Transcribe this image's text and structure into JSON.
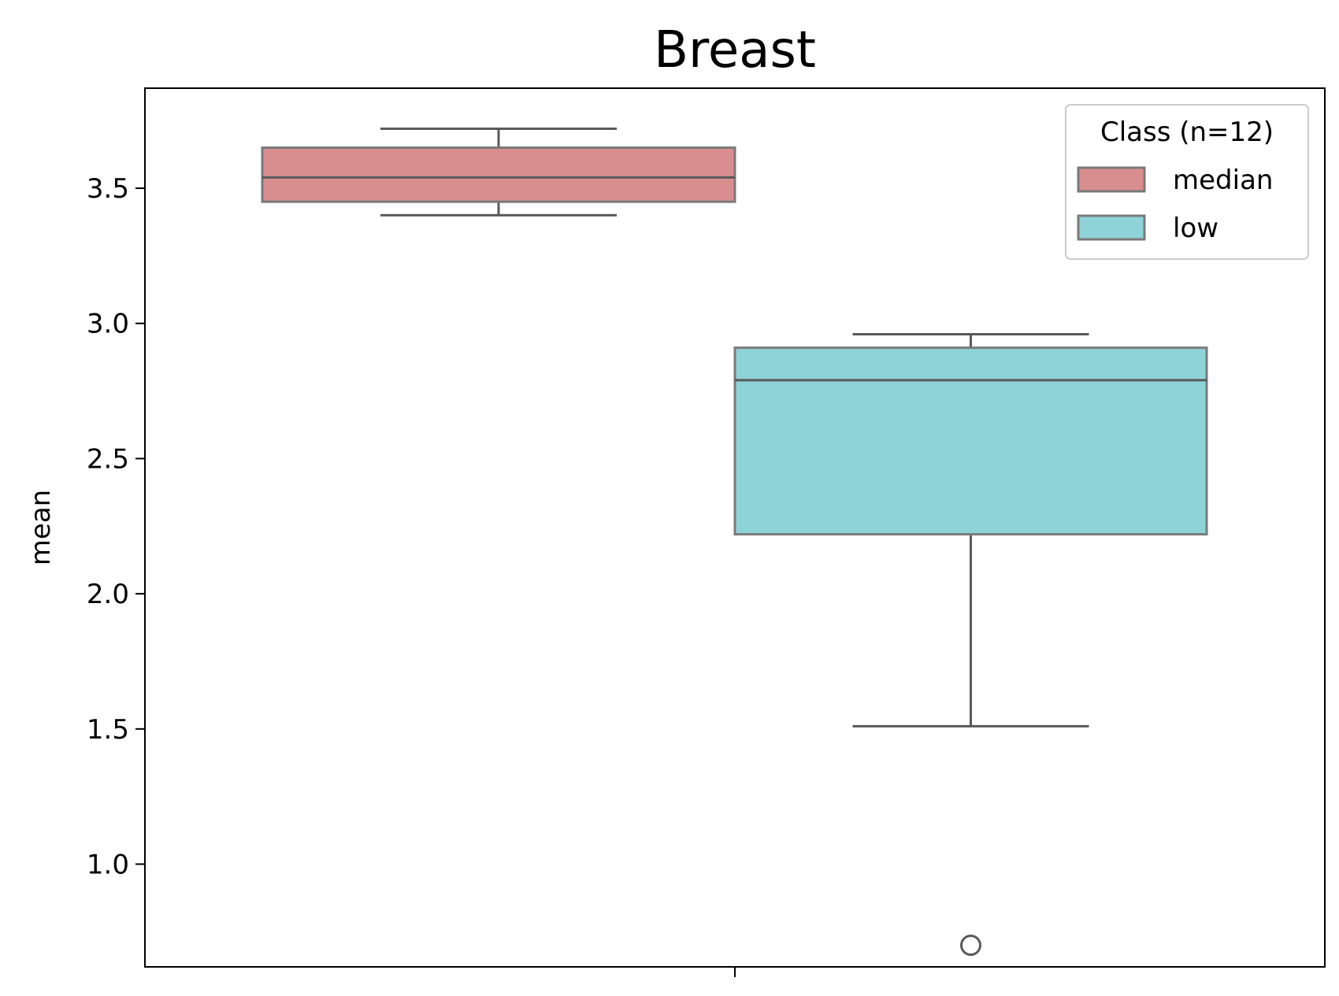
{
  "chart_data": {
    "type": "box",
    "title": "Breast",
    "ylabel": "mean",
    "ylim": [
      0.62,
      3.87
    ],
    "yticks": [
      "1.0",
      "1.5",
      "2.0",
      "2.5",
      "3.0",
      "3.5"
    ],
    "grid": false,
    "legend": {
      "title": "Class (n=12)",
      "position": "top-right"
    },
    "series": [
      {
        "name": "median",
        "color": "#d88e8e",
        "whisker_low": 3.4,
        "q1": 3.45,
        "median": 3.54,
        "q3": 3.65,
        "whisker_high": 3.72,
        "outliers": []
      },
      {
        "name": "low",
        "color": "#8ed3d8",
        "whisker_low": 1.51,
        "q1": 2.22,
        "median": 2.79,
        "q3": 2.91,
        "whisker_high": 2.96,
        "outliers": [
          0.7
        ]
      }
    ]
  }
}
